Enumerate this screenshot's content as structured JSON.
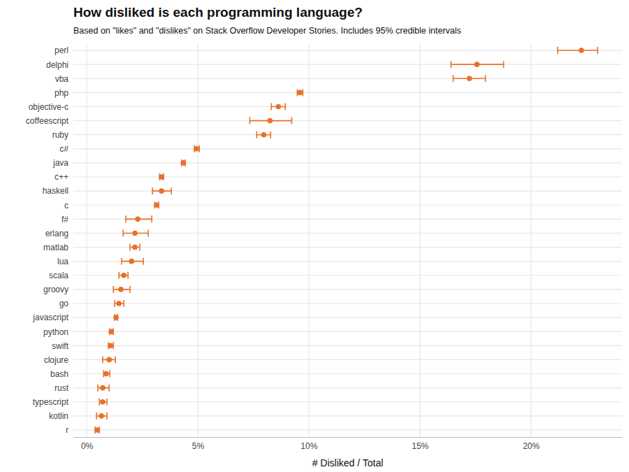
{
  "chart_data": {
    "type": "dot",
    "orientation": "horizontal",
    "title": "How disliked is each programming language?",
    "subtitle": "Based on \"likes\" and \"dislikes\" on Stack Overflow Developer Stories. Includes 95% credible intervals",
    "x_label": "# Disliked / Total",
    "categories": [
      "perl",
      "delphi",
      "vba",
      "php",
      "objective-c",
      "coffeescript",
      "ruby",
      "c#",
      "java",
      "c++",
      "haskell",
      "c",
      "f#",
      "erlang",
      "matlab",
      "lua",
      "scala",
      "groovy",
      "go",
      "javascript",
      "python",
      "swift",
      "clojure",
      "bash",
      "rust",
      "typescript",
      "kotlin",
      "r"
    ],
    "values": [
      22.27,
      17.57,
      17.23,
      9.6,
      8.63,
      8.25,
      7.97,
      4.94,
      4.35,
      3.37,
      3.37,
      3.15,
      2.3,
      2.17,
      2.17,
      2.02,
      1.67,
      1.54,
      1.45,
      1.32,
      1.1,
      1.07,
      1.01,
      0.88,
      0.72,
      0.72,
      0.66,
      0.47
    ],
    "lower": [
      21.2,
      16.4,
      16.5,
      9.48,
      8.31,
      7.34,
      7.65,
      4.85,
      4.28,
      3.28,
      2.96,
      3.06,
      1.76,
      1.64,
      1.95,
      1.57,
      1.45,
      1.2,
      1.26,
      1.26,
      1.04,
      0.98,
      0.72,
      0.76,
      0.5,
      0.57,
      0.44,
      0.38
    ],
    "upper": [
      23.0,
      18.77,
      17.95,
      9.73,
      8.94,
      9.23,
      8.28,
      5.07,
      4.44,
      3.46,
      3.81,
      3.24,
      2.93,
      2.77,
      2.39,
      2.55,
      1.86,
      1.95,
      1.67,
      1.39,
      1.2,
      1.2,
      1.29,
      1.04,
      1.01,
      0.91,
      0.91,
      0.57
    ],
    "color": "#e8702a",
    "xlim": [
      -0.6,
      24.1
    ],
    "xticks": [
      {
        "value": 0,
        "label": "0%"
      },
      {
        "value": 5,
        "label": "5%"
      },
      {
        "value": 10,
        "label": "10%"
      },
      {
        "value": 15,
        "label": "15%"
      },
      {
        "value": 20,
        "label": "20%"
      }
    ],
    "grid": true
  }
}
